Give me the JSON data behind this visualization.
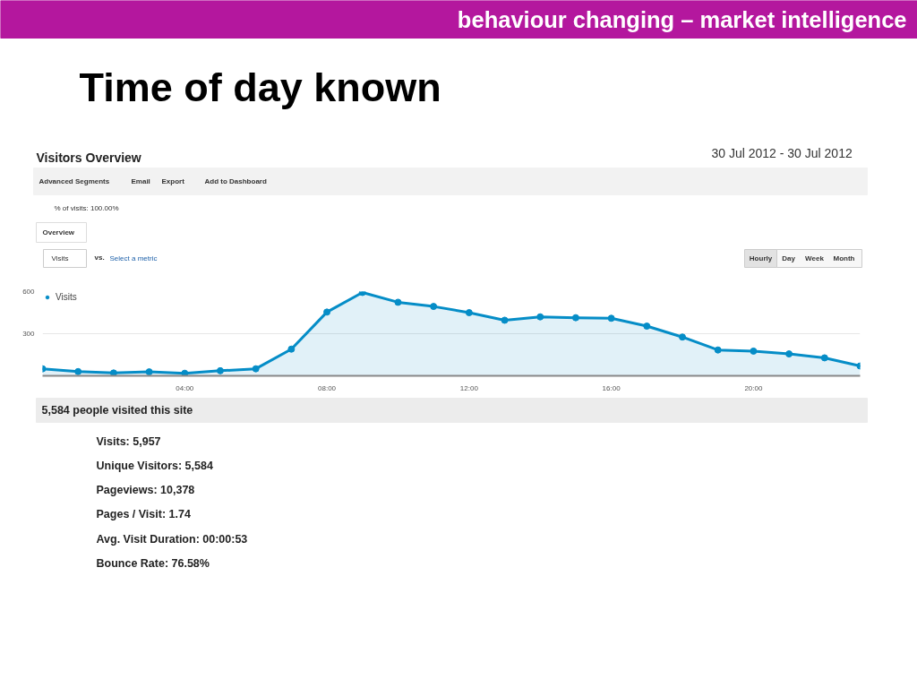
{
  "chart_data": {
    "type": "area",
    "title": "Time of day known",
    "subtitle": "Visitors Overview",
    "x": [
      0,
      1,
      2,
      3,
      4,
      5,
      6,
      7,
      8,
      9,
      10,
      11,
      12,
      13,
      14,
      15,
      16,
      17,
      18,
      19,
      20,
      21,
      22,
      23
    ],
    "series": [
      {
        "name": "Visits",
        "color": "#058dc7",
        "values": [
          50,
          30,
          20,
          28,
          18,
          36,
          50,
          190,
          454,
          594,
          524,
          494,
          450,
          396,
          420,
          414,
          410,
          354,
          276,
          184,
          176,
          156,
          128,
          70
        ]
      }
    ],
    "xlim": [
      0,
      23
    ],
    "xticks": [
      {
        "value": 4,
        "label": "04:00"
      },
      {
        "value": 8,
        "label": "08:00"
      },
      {
        "value": 12,
        "label": "12:00"
      },
      {
        "value": 16,
        "label": "16:00"
      },
      {
        "value": 20,
        "label": "20:00"
      }
    ],
    "ylim": [
      0,
      600
    ],
    "yticks": [
      300,
      600
    ],
    "grid": "y",
    "legend": "top left",
    "marker": "circle",
    "line_style": "solid",
    "annotations": [
      "behaviour changing – market intelligence",
      "30 Jul 2012 - 30 Jul 2012",
      "Advanced Segments",
      "Email",
      "Export",
      "Add to Dashboard",
      "% of visits: 100.00%",
      "Overview",
      "Visits",
      "vs.",
      "Select a metric",
      "Hourly",
      "Day",
      "Week",
      "Month",
      "5,584 people visited this site",
      "Visits: 5,957",
      "Unique Visitors: 5,584",
      "Pageviews: 10,378",
      "Pages / Visit: 1.74",
      "Avg. Visit Duration: 00:00:53",
      "Bounce Rate: 76.58%"
    ]
  }
}
